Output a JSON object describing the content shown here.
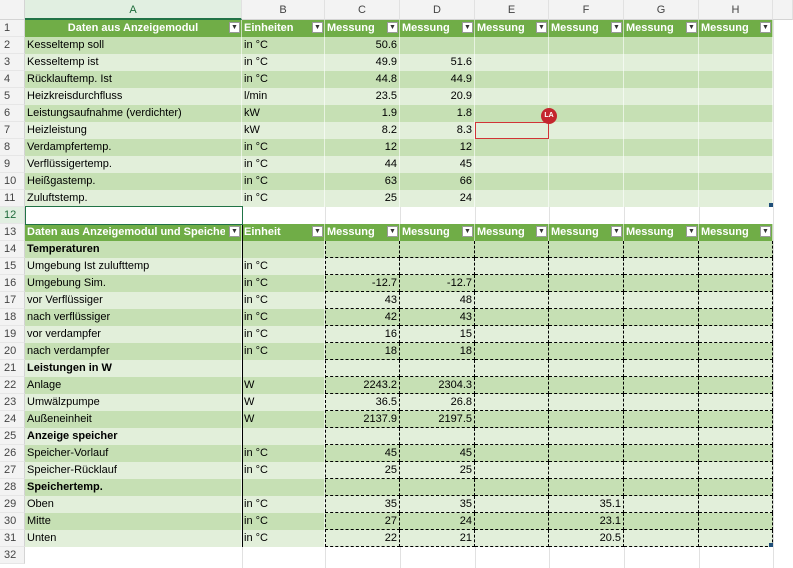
{
  "columns": [
    "A",
    "B",
    "C",
    "D",
    "E",
    "F",
    "G",
    "H"
  ],
  "selected_column": "A",
  "selected_row": "12",
  "comment_badge": "LA",
  "colors": {
    "header_green": "#70ad47",
    "band_dark": "#c6e0b4",
    "band_light": "#e2efda",
    "selection": "#217346",
    "comment": "#d13438"
  },
  "table1": {
    "header": [
      "Daten aus Anzeigemodul",
      "Einheiten",
      "Messung",
      "Messung",
      "Messung",
      "Messung",
      "Messung",
      "Messung"
    ],
    "rows": [
      {
        "num": "2",
        "cells": [
          "Kesseltemp soll",
          "in °C",
          "50.6",
          "",
          "",
          "",
          "",
          ""
        ]
      },
      {
        "num": "3",
        "cells": [
          "Kesseltemp ist",
          "in °C",
          "49.9",
          "51.6",
          "",
          "",
          "",
          ""
        ]
      },
      {
        "num": "4",
        "cells": [
          "Rücklauftemp. Ist",
          "in °C",
          "44.8",
          "44.9",
          "",
          "",
          "",
          ""
        ]
      },
      {
        "num": "5",
        "cells": [
          "Heizkreisdurchfluss",
          "l/min",
          "23.5",
          "20.9",
          "",
          "",
          "",
          ""
        ]
      },
      {
        "num": "6",
        "cells": [
          "Leistungsaufnahme (verdichter)",
          "kW",
          "1.9",
          "1.8",
          "",
          "",
          "",
          ""
        ]
      },
      {
        "num": "7",
        "cells": [
          "Heizleistung",
          "kW",
          "8.2",
          "8.3",
          "",
          "",
          "",
          ""
        ]
      },
      {
        "num": "8",
        "cells": [
          "Verdampfertemp.",
          "in °C",
          "12",
          "12",
          "",
          "",
          "",
          ""
        ]
      },
      {
        "num": "9",
        "cells": [
          "Verflüssigertemp.",
          "in °C",
          "44",
          "45",
          "",
          "",
          "",
          ""
        ]
      },
      {
        "num": "10",
        "cells": [
          "Heißgastemp.",
          "in °C",
          "63",
          "66",
          "",
          "",
          "",
          ""
        ]
      },
      {
        "num": "11",
        "cells": [
          "Zuluftstemp.",
          "in °C",
          "25",
          "24",
          "",
          "",
          "",
          ""
        ]
      }
    ]
  },
  "row12": {
    "num": "12"
  },
  "table2": {
    "header_num": "13",
    "header": [
      "Daten aus Anzeigemodul und Speicher",
      "Einheit",
      "Messung",
      "Messung",
      "Messung",
      "Messung",
      "Messung",
      "Messung"
    ],
    "rows": [
      {
        "num": "14",
        "bold": true,
        "cells": [
          "Temperaturen",
          "",
          "",
          "",
          "",
          "",
          "",
          ""
        ]
      },
      {
        "num": "15",
        "cells": [
          "Umgebung Ist zulufttemp",
          "in °C",
          "",
          "",
          "",
          "",
          "",
          ""
        ]
      },
      {
        "num": "16",
        "cells": [
          "Umgebung Sim.",
          "in °C",
          "-12.7",
          "-12.7",
          "",
          "",
          "",
          ""
        ]
      },
      {
        "num": "17",
        "cells": [
          "vor Verflüssiger",
          "in °C",
          "43",
          "48",
          "",
          "",
          "",
          ""
        ]
      },
      {
        "num": "18",
        "cells": [
          "nach verflüssiger",
          "in °C",
          "42",
          "43",
          "",
          "",
          "",
          ""
        ]
      },
      {
        "num": "19",
        "cells": [
          "vor verdampfer",
          "in °C",
          "16",
          "15",
          "",
          "",
          "",
          ""
        ]
      },
      {
        "num": "20",
        "cells": [
          "nach verdampfer",
          "in °C",
          "18",
          "18",
          "",
          "",
          "",
          ""
        ]
      },
      {
        "num": "21",
        "bold": true,
        "cells": [
          "Leistungen in W",
          "",
          "",
          "",
          "",
          "",
          "",
          ""
        ]
      },
      {
        "num": "22",
        "cells": [
          "Anlage",
          "W",
          "2243.2",
          "2304.3",
          "",
          "",
          "",
          ""
        ]
      },
      {
        "num": "23",
        "cells": [
          "Umwälzpumpe",
          "W",
          "36.5",
          "26.8",
          "",
          "",
          "",
          ""
        ]
      },
      {
        "num": "24",
        "cells": [
          "Außeneinheit",
          "W",
          "2137.9",
          "2197.5",
          "",
          "",
          "",
          ""
        ]
      },
      {
        "num": "25",
        "bold": true,
        "cells": [
          "Anzeige speicher",
          "",
          "",
          "",
          "",
          "",
          "",
          ""
        ]
      },
      {
        "num": "26",
        "cells": [
          "Speicher-Vorlauf",
          "in °C",
          "45",
          "45",
          "",
          "",
          "",
          ""
        ]
      },
      {
        "num": "27",
        "cells": [
          "Speicher-Rücklauf",
          "in °C",
          "25",
          "25",
          "",
          "",
          "",
          ""
        ]
      },
      {
        "num": "28",
        "bold": true,
        "cells": [
          "Speichertemp.",
          "",
          "",
          "",
          "",
          "",
          "",
          ""
        ]
      },
      {
        "num": "29",
        "cells": [
          "Oben",
          "in °C",
          "35",
          "35",
          "",
          "35.1",
          "",
          ""
        ]
      },
      {
        "num": "30",
        "cells": [
          "Mitte",
          "in °C",
          "27",
          "24",
          "",
          "23.1",
          "",
          ""
        ]
      },
      {
        "num": "31",
        "cells": [
          "Unten",
          "in °C",
          "22",
          "21",
          "",
          "20.5",
          "",
          ""
        ]
      }
    ]
  },
  "row32": {
    "num": "32"
  }
}
